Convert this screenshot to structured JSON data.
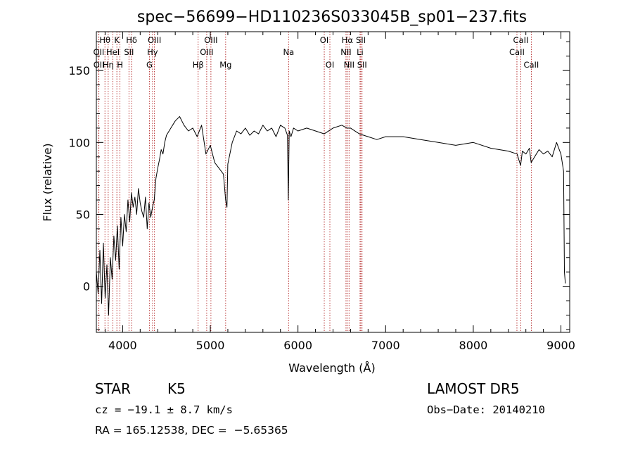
{
  "chart_data": {
    "type": "line",
    "title": "spec−56699−HD110236S033045B_sp01−237.fits",
    "xlabel": "Wavelength (Å)",
    "ylabel": "Flux (relative)",
    "xlim": [
      3700,
      9100
    ],
    "ylim": [
      -32,
      177
    ],
    "xticks": [
      4000,
      5000,
      6000,
      7000,
      8000,
      9000
    ],
    "yticks": [
      0,
      50,
      100,
      150
    ],
    "grid": false,
    "line_color": "#000000",
    "marker_color": "#b22222",
    "series": [
      {
        "x": [
          3700,
          3720,
          3740,
          3760,
          3780,
          3800,
          3820,
          3840,
          3860,
          3880,
          3900,
          3920,
          3940,
          3960,
          3980,
          4000,
          4020,
          4040,
          4060,
          4080,
          4100,
          4120,
          4140,
          4160,
          4180,
          4200,
          4220,
          4240,
          4260,
          4280,
          4300,
          4320,
          4340,
          4360,
          4380,
          4400,
          4420,
          4440,
          4460,
          4480,
          4500,
          4550,
          4600,
          4650,
          4700,
          4750,
          4800,
          4850,
          4900,
          4950,
          5000,
          5050,
          5100,
          5150,
          5175,
          5190,
          5200,
          5250,
          5300,
          5350,
          5400,
          5450,
          5500,
          5550,
          5600,
          5650,
          5700,
          5750,
          5800,
          5850,
          5880,
          5890,
          5900,
          5920,
          5950,
          6000,
          6100,
          6200,
          6300,
          6400,
          6500,
          6560,
          6600,
          6700,
          6800,
          6900,
          7000,
          7200,
          7400,
          7600,
          7800,
          8000,
          8200,
          8400,
          8500,
          8540,
          8560,
          8600,
          8640,
          8660,
          8700,
          8750,
          8800,
          8850,
          8900,
          8950,
          9000,
          9030,
          9040,
          9050
        ],
        "y": [
          10,
          -5,
          25,
          -12,
          30,
          -8,
          15,
          -20,
          20,
          5,
          35,
          18,
          42,
          12,
          48,
          28,
          50,
          38,
          60,
          45,
          65,
          55,
          62,
          50,
          68,
          58,
          52,
          48,
          62,
          40,
          58,
          48,
          55,
          60,
          75,
          82,
          88,
          95,
          92,
          100,
          105,
          110,
          115,
          118,
          112,
          108,
          110,
          104,
          112,
          92,
          98,
          86,
          82,
          78,
          60,
          55,
          85,
          100,
          108,
          106,
          110,
          105,
          108,
          106,
          112,
          108,
          110,
          104,
          112,
          110,
          105,
          60,
          108,
          104,
          110,
          108,
          110,
          108,
          106,
          110,
          112,
          110,
          110,
          106,
          104,
          102,
          104,
          104,
          102,
          100,
          98,
          100,
          96,
          94,
          92,
          84,
          94,
          92,
          96,
          86,
          90,
          95,
          92,
          94,
          90,
          100,
          92,
          80,
          10,
          2
        ]
      }
    ],
    "annotations": [
      {
        "label": "Hθ",
        "x": 3798,
        "row": 1
      },
      {
        "label": "K",
        "x": 3934,
        "row": 1
      },
      {
        "label": "Hδ",
        "x": 4102,
        "row": 1
      },
      {
        "label": "OIII",
        "x": 4363,
        "row": 1
      },
      {
        "label": "OIII",
        "x": 5007,
        "row": 1
      },
      {
        "label": "OI",
        "x": 6300,
        "row": 1
      },
      {
        "label": "Hα",
        "x": 6563,
        "row": 1
      },
      {
        "label": "SII",
        "x": 6717,
        "row": 1
      },
      {
        "label": "CaII",
        "x": 8542,
        "row": 1
      },
      {
        "label": "OII",
        "x": 3727,
        "row": 2
      },
      {
        "label": "HeI",
        "x": 3889,
        "row": 2
      },
      {
        "label": "SII",
        "x": 4072,
        "row": 2
      },
      {
        "label": "Hγ",
        "x": 4341,
        "row": 2
      },
      {
        "label": "OIII",
        "x": 4959,
        "row": 2
      },
      {
        "label": "Na",
        "x": 5893,
        "row": 2
      },
      {
        "label": "NII",
        "x": 6548,
        "row": 2
      },
      {
        "label": "Li",
        "x": 6708,
        "row": 2
      },
      {
        "label": "CaII",
        "x": 8498,
        "row": 2
      },
      {
        "label": "OII",
        "x": 3729,
        "row": 3
      },
      {
        "label": "Hη",
        "x": 3835,
        "row": 3
      },
      {
        "label": "H",
        "x": 3969,
        "row": 3
      },
      {
        "label": "G",
        "x": 4305,
        "row": 3
      },
      {
        "label": "Hβ",
        "x": 4861,
        "row": 3
      },
      {
        "label": "Mg",
        "x": 5175,
        "row": 3
      },
      {
        "label": "OI",
        "x": 6364,
        "row": 3
      },
      {
        "label": "NII",
        "x": 6583,
        "row": 3
      },
      {
        "label": "SII",
        "x": 6731,
        "row": 3
      },
      {
        "label": "CaII",
        "x": 8662,
        "row": 3
      }
    ]
  },
  "info": {
    "class_label": "STAR",
    "subclass": "K5",
    "survey": "LAMOST DR5",
    "cz_line": "cz = −19.1 ± 8.7 km/s",
    "obs_date_line": "Obs−Date: 20140210",
    "coord_line": "RA = 165.12538, DEC =  −5.65365"
  }
}
